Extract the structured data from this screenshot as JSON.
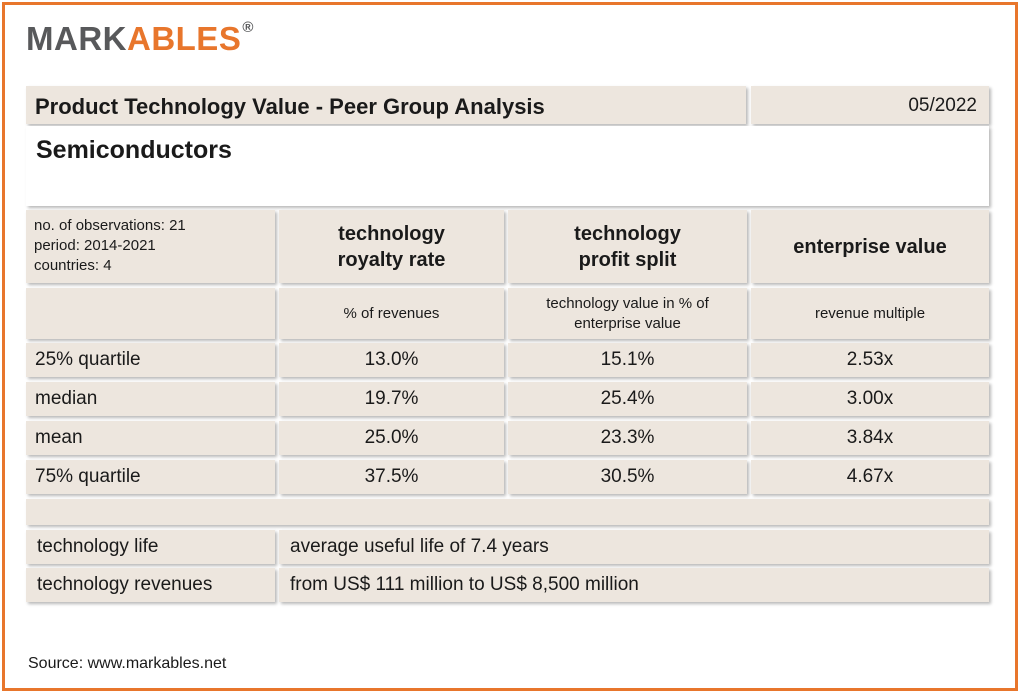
{
  "logo": {
    "part1": "MARK",
    "part2": "ABLES",
    "reg": "®"
  },
  "header": {
    "title": "Product Technology Value - Peer Group Analysis",
    "date": "05/2022",
    "subtitle": "Semiconductors"
  },
  "meta": [
    "no. of observations: 21",
    "period: 2014-2021",
    "countries: 4"
  ],
  "columns": [
    {
      "head": [
        "technology",
        "royalty rate"
      ],
      "unit": [
        "% of revenues"
      ]
    },
    {
      "head": [
        "technology",
        "profit split"
      ],
      "unit": [
        "technology value in % of",
        "enterprise value"
      ]
    },
    {
      "head": [
        "enterprise value"
      ],
      "unit": [
        "revenue multiple"
      ]
    }
  ],
  "rows": [
    {
      "label": "25% quartile",
      "values": [
        "13.0%",
        "15.1%",
        "2.53x"
      ]
    },
    {
      "label": "median",
      "values": [
        "19.7%",
        "25.4%",
        "3.00x"
      ]
    },
    {
      "label": "mean",
      "values": [
        "25.0%",
        "23.3%",
        "3.84x"
      ]
    },
    {
      "label": "75% quartile",
      "values": [
        "37.5%",
        "30.5%",
        "4.67x"
      ]
    }
  ],
  "footer": [
    {
      "label": "technology life",
      "value": "average useful life of 7.4 years"
    },
    {
      "label": "technology revenues",
      "value": "from US$ 111 million to US$ 8,500 million"
    }
  ],
  "source": "Source: www.markables.net",
  "colors": {
    "accent": "#e8762c",
    "logo_gray": "#58595b",
    "cell_bg": "#ede6de"
  }
}
